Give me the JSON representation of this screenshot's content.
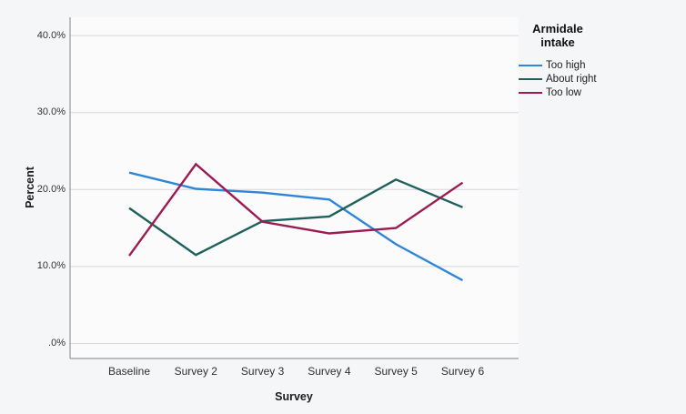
{
  "chart_data": {
    "type": "line",
    "title": "",
    "xlabel": "Survey",
    "ylabel": "Percent",
    "legend_title": "Armidale intake",
    "legend_position": "right",
    "grid": "horizontal",
    "categories": [
      "Baseline",
      "Survey 2",
      "Survey 3",
      "Survey 4",
      "Survey 5",
      "Survey 6"
    ],
    "y_ticks": [
      {
        "value": 0,
        "label": ".0%"
      },
      {
        "value": 10,
        "label": "10.0%"
      },
      {
        "value": 20,
        "label": "20.0%"
      },
      {
        "value": 30,
        "label": "30.0%"
      },
      {
        "value": 40,
        "label": "40.0%"
      }
    ],
    "ylim": [
      -2,
      42.5
    ],
    "series": [
      {
        "name": "Too high",
        "color": "#2E86D8",
        "values": [
          22.2,
          20.1,
          19.6,
          18.7,
          12.9,
          8.2
        ]
      },
      {
        "name": "About right",
        "color": "#1E615C",
        "values": [
          17.6,
          11.5,
          15.9,
          16.5,
          21.3,
          17.7
        ]
      },
      {
        "name": "Too low",
        "color": "#9C1B52",
        "values": [
          11.4,
          23.3,
          15.8,
          14.3,
          15.0,
          20.9
        ]
      }
    ],
    "colors": {
      "background": "#f5f6f8",
      "plot_background": "#fbfbfc",
      "gridline": "#d8d8da",
      "axis_line": "#96989a",
      "text": "#2b2b2b"
    }
  }
}
